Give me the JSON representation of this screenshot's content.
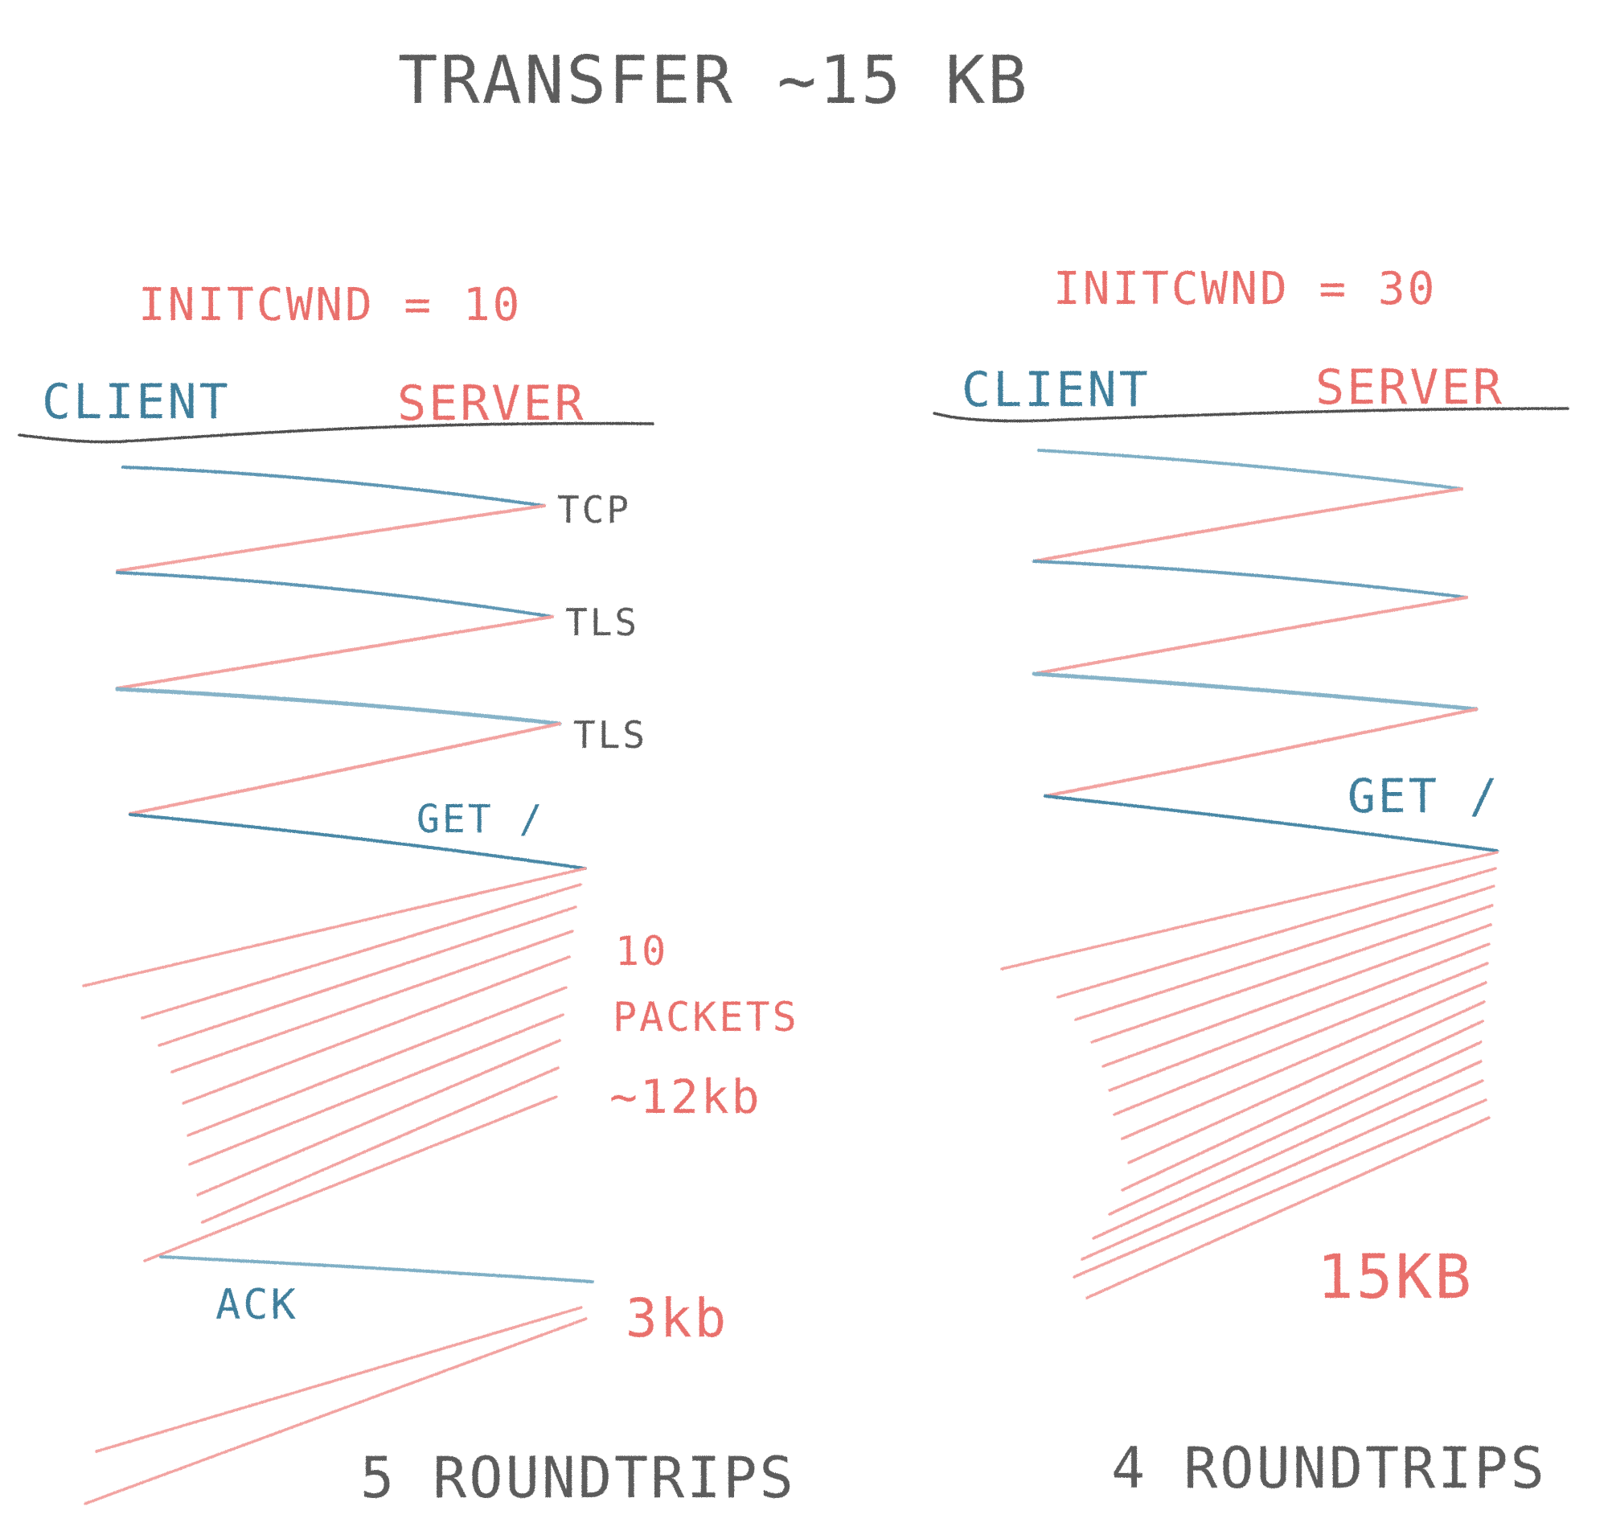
{
  "title": "TRANSFER ~15 KB",
  "colors": {
    "client": "#4a88a6",
    "server": "#ec8280",
    "ink": "#555555"
  },
  "left": {
    "initcwnd_label": "INITCWND = 10",
    "client_label": "CLIENT",
    "server_label": "SERVER",
    "handshake_labels": [
      "TCP",
      "TLS",
      "TLS"
    ],
    "request_label": "GET /",
    "burst_label_lines": [
      "10",
      "PACKETS",
      "~12kb"
    ],
    "ack_label": "ACK",
    "second_burst_label": "3kb",
    "roundtrips_label": "5 ROUNDTRIPS"
  },
  "right": {
    "initcwnd_label": "INITCWND = 30",
    "client_label": "CLIENT",
    "server_label": "SERVER",
    "request_label": "GET /",
    "burst_label": "15KB",
    "roundtrips_label": "4 ROUNDTRIPS"
  }
}
